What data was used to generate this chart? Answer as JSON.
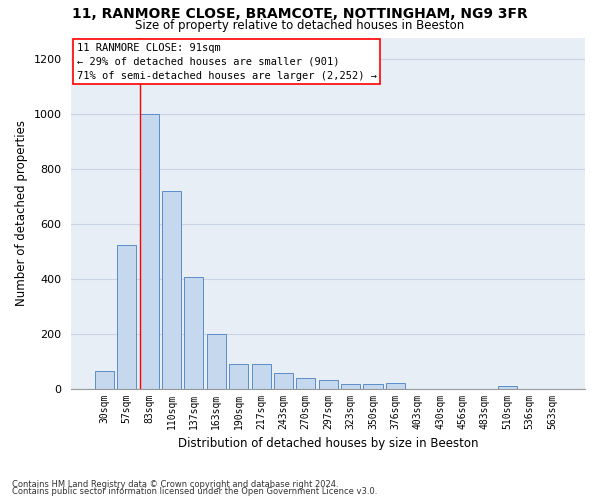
{
  "title1": "11, RANMORE CLOSE, BRAMCOTE, NOTTINGHAM, NG9 3FR",
  "title2": "Size of property relative to detached houses in Beeston",
  "xlabel": "Distribution of detached houses by size in Beeston",
  "ylabel": "Number of detached properties",
  "bar_labels": [
    "30sqm",
    "57sqm",
    "83sqm",
    "110sqm",
    "137sqm",
    "163sqm",
    "190sqm",
    "217sqm",
    "243sqm",
    "270sqm",
    "297sqm",
    "323sqm",
    "350sqm",
    "376sqm",
    "403sqm",
    "430sqm",
    "456sqm",
    "483sqm",
    "510sqm",
    "536sqm",
    "563sqm"
  ],
  "bar_values": [
    65,
    525,
    1000,
    720,
    405,
    198,
    90,
    90,
    58,
    40,
    32,
    18,
    18,
    20,
    0,
    0,
    0,
    0,
    10,
    0,
    0
  ],
  "bar_color": "#c5d8ed",
  "bar_edge_color": "#5b8dc8",
  "grid_color": "#c8d4e4",
  "bg_color": "#e8eef6",
  "red_line_bar_index": 2,
  "annotation_line1": "11 RANMORE CLOSE: 91sqm",
  "annotation_line2": "← 29% of detached houses are smaller (901)",
  "annotation_line3": "71% of semi-detached houses are larger (2,252) →",
  "footnote1": "Contains HM Land Registry data © Crown copyright and database right 2024.",
  "footnote2": "Contains public sector information licensed under the Open Government Licence v3.0.",
  "ylim": [
    0,
    1280
  ],
  "yticks": [
    0,
    200,
    400,
    600,
    800,
    1000,
    1200
  ]
}
